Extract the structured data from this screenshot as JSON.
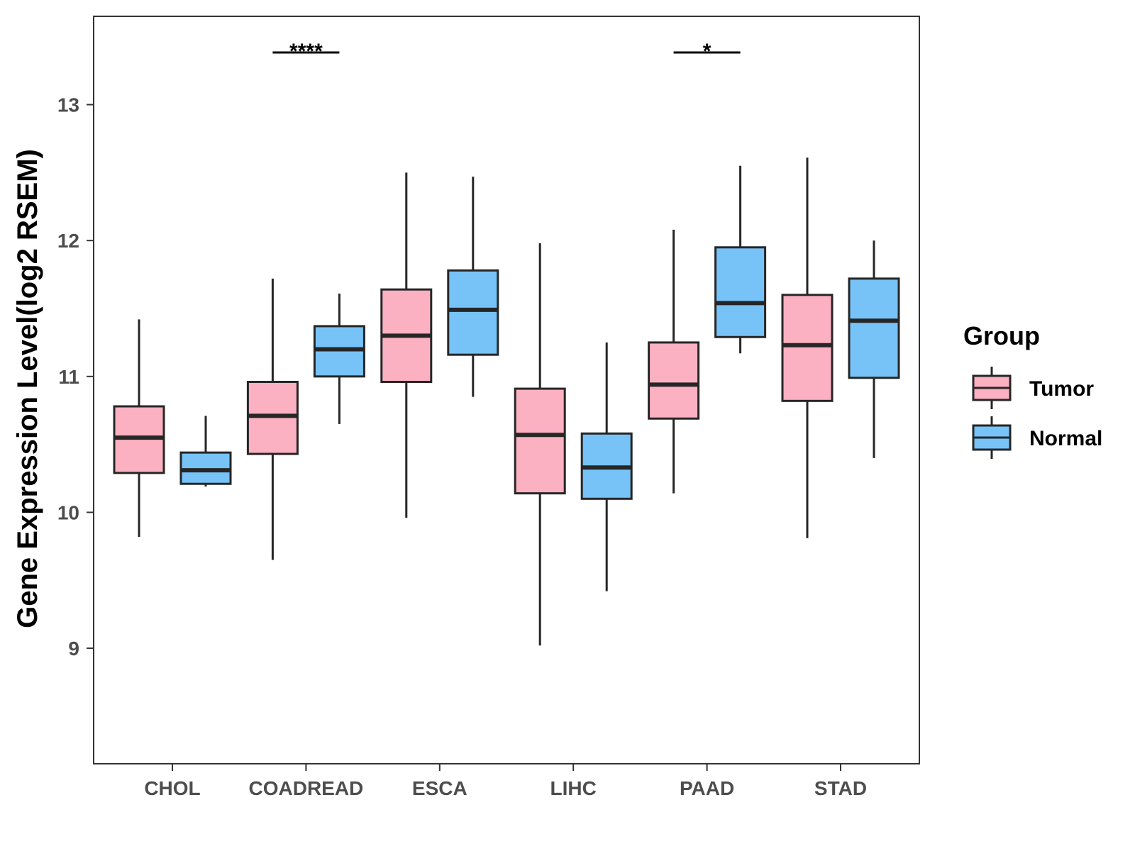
{
  "chart_data": {
    "type": "boxplot",
    "title": "",
    "xlabel": "",
    "ylabel": "Gene Expression Level(log2 RSEM)",
    "ylim": [
      8.15,
      13.65
    ],
    "yticks": [
      9,
      10,
      11,
      12,
      13
    ],
    "grid": false,
    "legend": {
      "title": "Group",
      "position": "right",
      "entries": [
        "Tumor",
        "Normal"
      ]
    },
    "colors": {
      "Tumor": "#FBB1C1",
      "Normal": "#77C3F8",
      "outline": "#262626"
    },
    "categories": [
      "CHOL",
      "COADREAD",
      "ESCA",
      "LIHC",
      "PAAD",
      "STAD"
    ],
    "series": [
      {
        "name": "Tumor",
        "boxes": [
          {
            "min": 9.82,
            "q1": 10.29,
            "median": 10.55,
            "q3": 10.78,
            "max": 11.42
          },
          {
            "min": 9.65,
            "q1": 10.43,
            "median": 10.71,
            "q3": 10.96,
            "max": 11.72
          },
          {
            "min": 9.96,
            "q1": 10.96,
            "median": 11.3,
            "q3": 11.64,
            "max": 12.5
          },
          {
            "min": 9.02,
            "q1": 10.14,
            "median": 10.57,
            "q3": 10.91,
            "max": 11.98
          },
          {
            "min": 10.14,
            "q1": 10.69,
            "median": 10.94,
            "q3": 11.25,
            "max": 12.08
          },
          {
            "min": 9.81,
            "q1": 10.82,
            "median": 11.23,
            "q3": 11.6,
            "max": 12.61
          }
        ]
      },
      {
        "name": "Normal",
        "boxes": [
          {
            "min": 10.19,
            "q1": 10.21,
            "median": 10.31,
            "q3": 10.44,
            "max": 10.71
          },
          {
            "min": 10.65,
            "q1": 11.0,
            "median": 11.2,
            "q3": 11.37,
            "max": 11.61
          },
          {
            "min": 10.85,
            "q1": 11.16,
            "median": 11.49,
            "q3": 11.78,
            "max": 12.47
          },
          {
            "min": 9.42,
            "q1": 10.1,
            "median": 10.33,
            "q3": 10.58,
            "max": 11.25
          },
          {
            "min": 11.17,
            "q1": 11.29,
            "median": 11.54,
            "q3": 11.95,
            "max": 12.55
          },
          {
            "min": 10.4,
            "q1": 10.99,
            "median": 11.41,
            "q3": 11.72,
            "max": 12.0
          }
        ]
      }
    ],
    "annotations": [
      {
        "category": "COADREAD",
        "label": "****"
      },
      {
        "category": "PAAD",
        "label": "*"
      }
    ]
  }
}
